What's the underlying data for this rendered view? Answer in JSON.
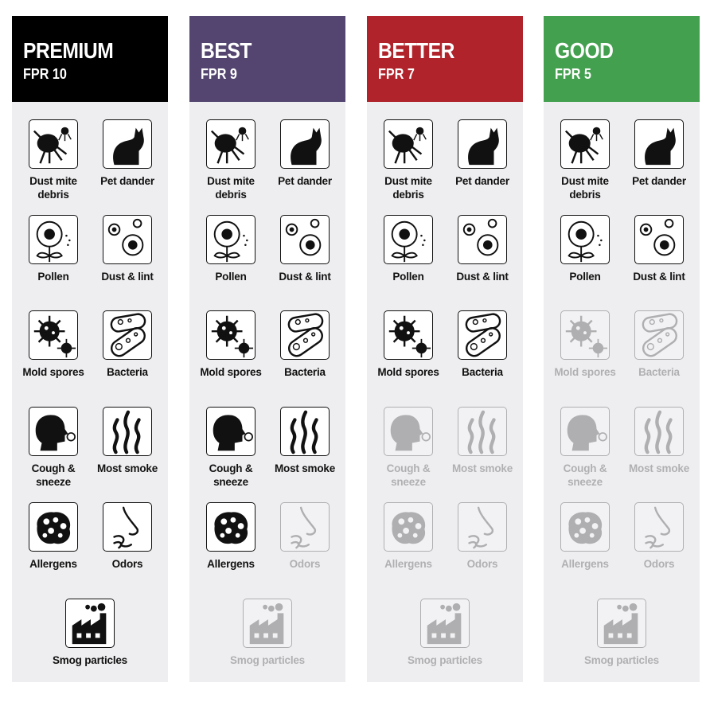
{
  "columns": [
    {
      "tier": "PREMIUM",
      "fpr": "FPR 10",
      "color": "#000000",
      "items": [
        {
          "label": "Dust mite debris",
          "icon": "dust-mite-icon",
          "active": true
        },
        {
          "label": "Pet dander",
          "icon": "cat-icon",
          "active": true
        },
        {
          "label": "Pollen",
          "icon": "flower-icon",
          "active": true
        },
        {
          "label": "Dust & lint",
          "icon": "dust-particles-icon",
          "active": true
        },
        {
          "label": "Mold spores",
          "icon": "virus-icon",
          "active": true
        },
        {
          "label": "Bacteria",
          "icon": "bacteria-icon",
          "active": true
        },
        {
          "label": "Cough & sneeze",
          "icon": "sneeze-head-icon",
          "active": true
        },
        {
          "label": "Most smoke",
          "icon": "smoke-icon",
          "active": true
        },
        {
          "label": "Allergens",
          "icon": "allergen-cluster-icon",
          "active": true
        },
        {
          "label": "Odors",
          "icon": "nose-icon",
          "active": true
        },
        {
          "label": "Smog particles",
          "icon": "factory-icon",
          "active": true
        }
      ]
    },
    {
      "tier": "BEST",
      "fpr": "FPR 9",
      "color": "#53456f",
      "items": [
        {
          "label": "Dust mite debris",
          "icon": "dust-mite-icon",
          "active": true
        },
        {
          "label": "Pet dander",
          "icon": "cat-icon",
          "active": true
        },
        {
          "label": "Pollen",
          "icon": "flower-icon",
          "active": true
        },
        {
          "label": "Dust & lint",
          "icon": "dust-particles-icon",
          "active": true
        },
        {
          "label": "Mold spores",
          "icon": "virus-icon",
          "active": true
        },
        {
          "label": "Bacteria",
          "icon": "bacteria-icon",
          "active": true
        },
        {
          "label": "Cough & sneeze",
          "icon": "sneeze-head-icon",
          "active": true
        },
        {
          "label": "Most smoke",
          "icon": "smoke-icon",
          "active": true
        },
        {
          "label": "Allergens",
          "icon": "allergen-cluster-icon",
          "active": true
        },
        {
          "label": "Odors",
          "icon": "nose-icon",
          "active": false
        },
        {
          "label": "Smog particles",
          "icon": "factory-icon",
          "active": false
        }
      ]
    },
    {
      "tier": "BETTER",
      "fpr": "FPR 7",
      "color": "#b0232a",
      "items": [
        {
          "label": "Dust mite debris",
          "icon": "dust-mite-icon",
          "active": true
        },
        {
          "label": "Pet dander",
          "icon": "cat-icon",
          "active": true
        },
        {
          "label": "Pollen",
          "icon": "flower-icon",
          "active": true
        },
        {
          "label": "Dust & lint",
          "icon": "dust-particles-icon",
          "active": true
        },
        {
          "label": "Mold spores",
          "icon": "virus-icon",
          "active": true
        },
        {
          "label": "Bacteria",
          "icon": "bacteria-icon",
          "active": true
        },
        {
          "label": "Cough & sneeze",
          "icon": "sneeze-head-icon",
          "active": false
        },
        {
          "label": "Most smoke",
          "icon": "smoke-icon",
          "active": false
        },
        {
          "label": "Allergens",
          "icon": "allergen-cluster-icon",
          "active": false
        },
        {
          "label": "Odors",
          "icon": "nose-icon",
          "active": false
        },
        {
          "label": "Smog particles",
          "icon": "factory-icon",
          "active": false
        }
      ]
    },
    {
      "tier": "GOOD",
      "fpr": "FPR 5",
      "color": "#43a04f",
      "items": [
        {
          "label": "Dust mite debris",
          "icon": "dust-mite-icon",
          "active": true
        },
        {
          "label": "Pet dander",
          "icon": "cat-icon",
          "active": true
        },
        {
          "label": "Pollen",
          "icon": "flower-icon",
          "active": true
        },
        {
          "label": "Dust & lint",
          "icon": "dust-particles-icon",
          "active": true
        },
        {
          "label": "Mold spores",
          "icon": "virus-icon",
          "active": false
        },
        {
          "label": "Bacteria",
          "icon": "bacteria-icon",
          "active": false
        },
        {
          "label": "Cough & sneeze",
          "icon": "sneeze-head-icon",
          "active": false
        },
        {
          "label": "Most smoke",
          "icon": "smoke-icon",
          "active": false
        },
        {
          "label": "Allergens",
          "icon": "allergen-cluster-icon",
          "active": false
        },
        {
          "label": "Odors",
          "icon": "nose-icon",
          "active": false
        },
        {
          "label": "Smog particles",
          "icon": "factory-icon",
          "active": false
        }
      ]
    }
  ]
}
